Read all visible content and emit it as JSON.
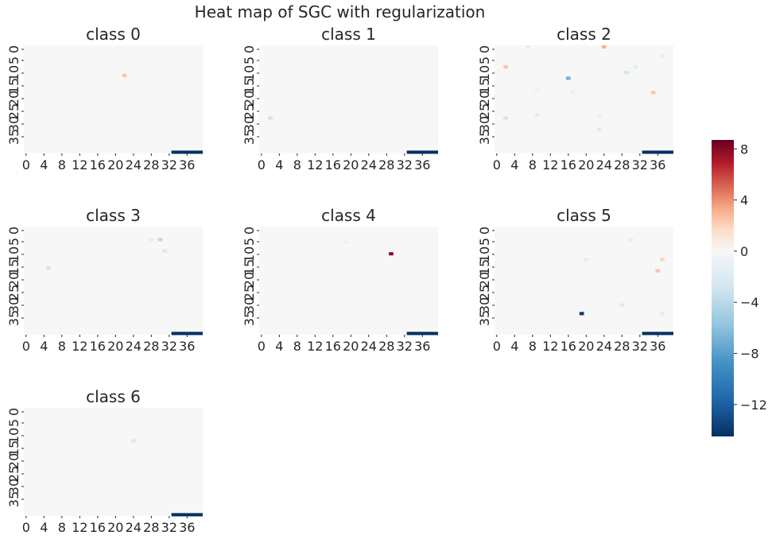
{
  "chart_data": {
    "type": "heatmap",
    "title": "Heat map of SGC with regularization",
    "x_ticks": [
      "0",
      "4",
      "8",
      "12",
      "16",
      "20",
      "24",
      "28",
      "32",
      "36"
    ],
    "y_ticks": [
      "0",
      "5",
      "10",
      "15",
      "20",
      "25",
      "30",
      "35"
    ],
    "x_range": [
      0,
      40
    ],
    "y_range": [
      0,
      38
    ],
    "background_value": 0,
    "colormap": "RdBu_r",
    "colorbar": {
      "vmin": -14.5,
      "vmax": 8.7,
      "ticks": [
        8,
        4,
        0,
        -4,
        -8,
        -12
      ],
      "tick_labels": [
        "8",
        "4",
        "0",
        "−4",
        "−8",
        "−12"
      ]
    },
    "panels": [
      {
        "name": "class 0",
        "cells": [
          {
            "x": 22,
            "y": 10,
            "v": 2.5
          },
          {
            "x": 33,
            "y": 37,
            "w": 7,
            "v": -14.5
          }
        ]
      },
      {
        "name": "class 1",
        "cells": [
          {
            "x": 2,
            "y": 25,
            "v": -3.0
          },
          {
            "x": 33,
            "y": 37,
            "w": 7,
            "v": -14.5
          }
        ]
      },
      {
        "name": "class 2",
        "cells": [
          {
            "x": 7,
            "y": 0,
            "v": -1.5
          },
          {
            "x": 24,
            "y": 0,
            "v": 3.0
          },
          {
            "x": 2,
            "y": 7,
            "v": 2.5
          },
          {
            "x": 31,
            "y": 7,
            "v": -1.5
          },
          {
            "x": 29,
            "y": 9,
            "v": -3.0
          },
          {
            "x": 16,
            "y": 11,
            "v": -7.0
          },
          {
            "x": 9,
            "y": 15,
            "v": -1.0
          },
          {
            "x": 17,
            "y": 16,
            "v": -1.0
          },
          {
            "x": 35,
            "y": 16,
            "v": 2.5
          },
          {
            "x": 2,
            "y": 25,
            "v": -3.0
          },
          {
            "x": 9,
            "y": 24,
            "v": -1.5
          },
          {
            "x": 23,
            "y": 24,
            "v": -1.0
          },
          {
            "x": 23,
            "y": 29,
            "v": -2.0
          },
          {
            "x": 37,
            "y": 3,
            "v": 1.0
          },
          {
            "x": 33,
            "y": 37,
            "w": 7,
            "v": -14.5
          }
        ]
      },
      {
        "name": "class 3",
        "cells": [
          {
            "x": 30,
            "y": 4,
            "v": -4.0
          },
          {
            "x": 28,
            "y": 4,
            "v": 1.0
          },
          {
            "x": 31,
            "y": 8,
            "v": 1.5
          },
          {
            "x": 5,
            "y": 14,
            "v": -3.0
          },
          {
            "x": 33,
            "y": 37,
            "w": 7,
            "v": -14.5
          }
        ]
      },
      {
        "name": "class 4",
        "cells": [
          {
            "x": 29,
            "y": 9,
            "v": 8.0
          },
          {
            "x": 19,
            "y": 5,
            "v": -0.8
          },
          {
            "x": 33,
            "y": 37,
            "w": 7,
            "v": -14.5
          }
        ]
      },
      {
        "name": "class 5",
        "cells": [
          {
            "x": 30,
            "y": 4,
            "v": -1.5
          },
          {
            "x": 37,
            "y": 11,
            "v": 2.0
          },
          {
            "x": 36,
            "y": 15,
            "v": 2.5
          },
          {
            "x": 20,
            "y": 11,
            "v": 1.0
          },
          {
            "x": 28,
            "y": 27,
            "v": 1.5
          },
          {
            "x": 19,
            "y": 30,
            "v": -14.0
          },
          {
            "x": 37,
            "y": 30,
            "v": 1.0
          },
          {
            "x": 33,
            "y": 37,
            "w": 7,
            "v": -14.5
          }
        ]
      },
      {
        "name": "class 6",
        "cells": [
          {
            "x": 24,
            "y": 11,
            "v": 1.5
          },
          {
            "x": 33,
            "y": 37,
            "w": 7,
            "v": -14.5
          }
        ]
      }
    ]
  }
}
